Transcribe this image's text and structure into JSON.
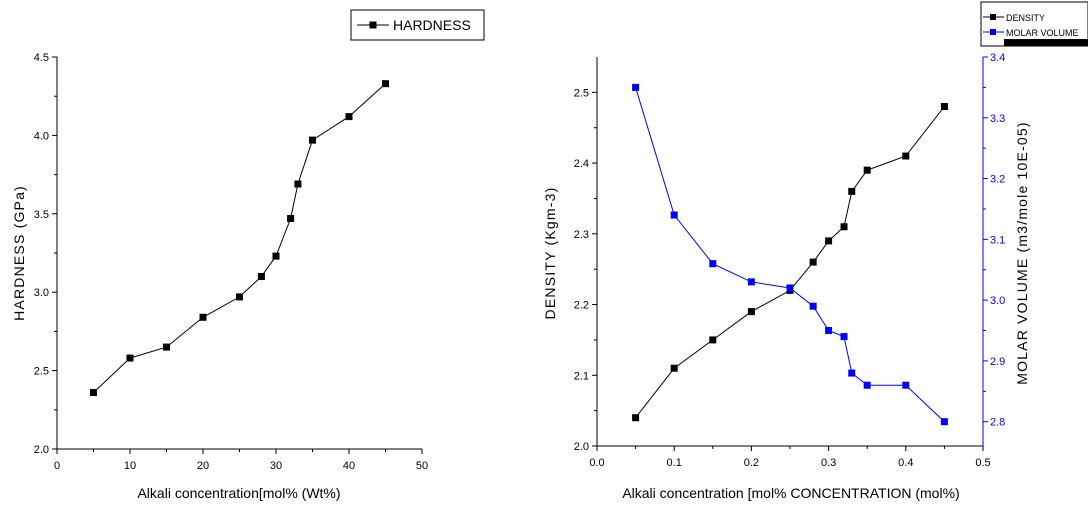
{
  "chart_data": [
    {
      "type": "line",
      "xlabel": "Alkali concentration[mol% (Wt%)",
      "ylabel": "HARDNESS (GPa)",
      "xlim": [
        0,
        50
      ],
      "ylim": [
        2.0,
        4.5
      ],
      "xticks": [
        "0",
        "10",
        "20",
        "30",
        "40",
        "50"
      ],
      "yticks": [
        "2.0",
        "2.5",
        "3.0",
        "3.5",
        "4.0",
        "4.5"
      ],
      "legend": {
        "entries": [
          "HARDNESS"
        ],
        "placement": "top-right"
      },
      "series": [
        {
          "name": "HARDNESS",
          "color": "#000000",
          "marker": "square",
          "x": [
            5,
            10,
            15,
            20,
            25,
            28,
            30,
            32,
            33,
            35,
            40,
            45
          ],
          "y": [
            2.36,
            2.58,
            2.65,
            2.84,
            2.97,
            3.1,
            3.23,
            3.47,
            3.69,
            3.97,
            4.12,
            4.33
          ]
        }
      ]
    },
    {
      "type": "line",
      "xlabel": "Alkali concentration [mol% CONCENTRATION (mol%)",
      "ylabel": "DENSITY (Kgm-3)",
      "y2label": "MOLAR VOLUME (m3/mole 10E-05)",
      "xlim": [
        0.0,
        0.5
      ],
      "ylim": [
        2.0,
        2.55
      ],
      "y2lim": [
        2.76,
        3.4
      ],
      "xticks": [
        "0.0",
        "0.1",
        "0.2",
        "0.3",
        "0.4",
        "0.5"
      ],
      "yticks": [
        "2.0",
        "2.1",
        "2.2",
        "2.3",
        "2.4",
        "2.5"
      ],
      "y2ticks": [
        "2.8",
        "2.9",
        "3.0",
        "3.1",
        "3.2",
        "3.3",
        "3.4"
      ],
      "legend": {
        "entries": [
          "DENSITY",
          "MOLAR VOLUME"
        ],
        "placement": "top-right"
      },
      "series": [
        {
          "name": "DENSITY",
          "color": "#000000",
          "marker": "square",
          "axis": "left",
          "x": [
            0.05,
            0.1,
            0.15,
            0.2,
            0.25,
            0.28,
            0.3,
            0.32,
            0.33,
            0.35,
            0.4,
            0.45
          ],
          "y": [
            2.04,
            2.11,
            2.15,
            2.19,
            2.22,
            2.26,
            2.29,
            2.31,
            2.36,
            2.39,
            2.41,
            2.48
          ]
        },
        {
          "name": "MOLAR VOLUME",
          "color": "#0000ff",
          "marker": "square",
          "axis": "right",
          "x": [
            0.05,
            0.1,
            0.15,
            0.2,
            0.25,
            0.28,
            0.3,
            0.32,
            0.33,
            0.35,
            0.4,
            0.45
          ],
          "y": [
            3.35,
            3.14,
            3.06,
            3.03,
            3.02,
            2.99,
            2.95,
            2.94,
            2.88,
            2.86,
            2.86,
            2.8
          ]
        }
      ]
    }
  ]
}
